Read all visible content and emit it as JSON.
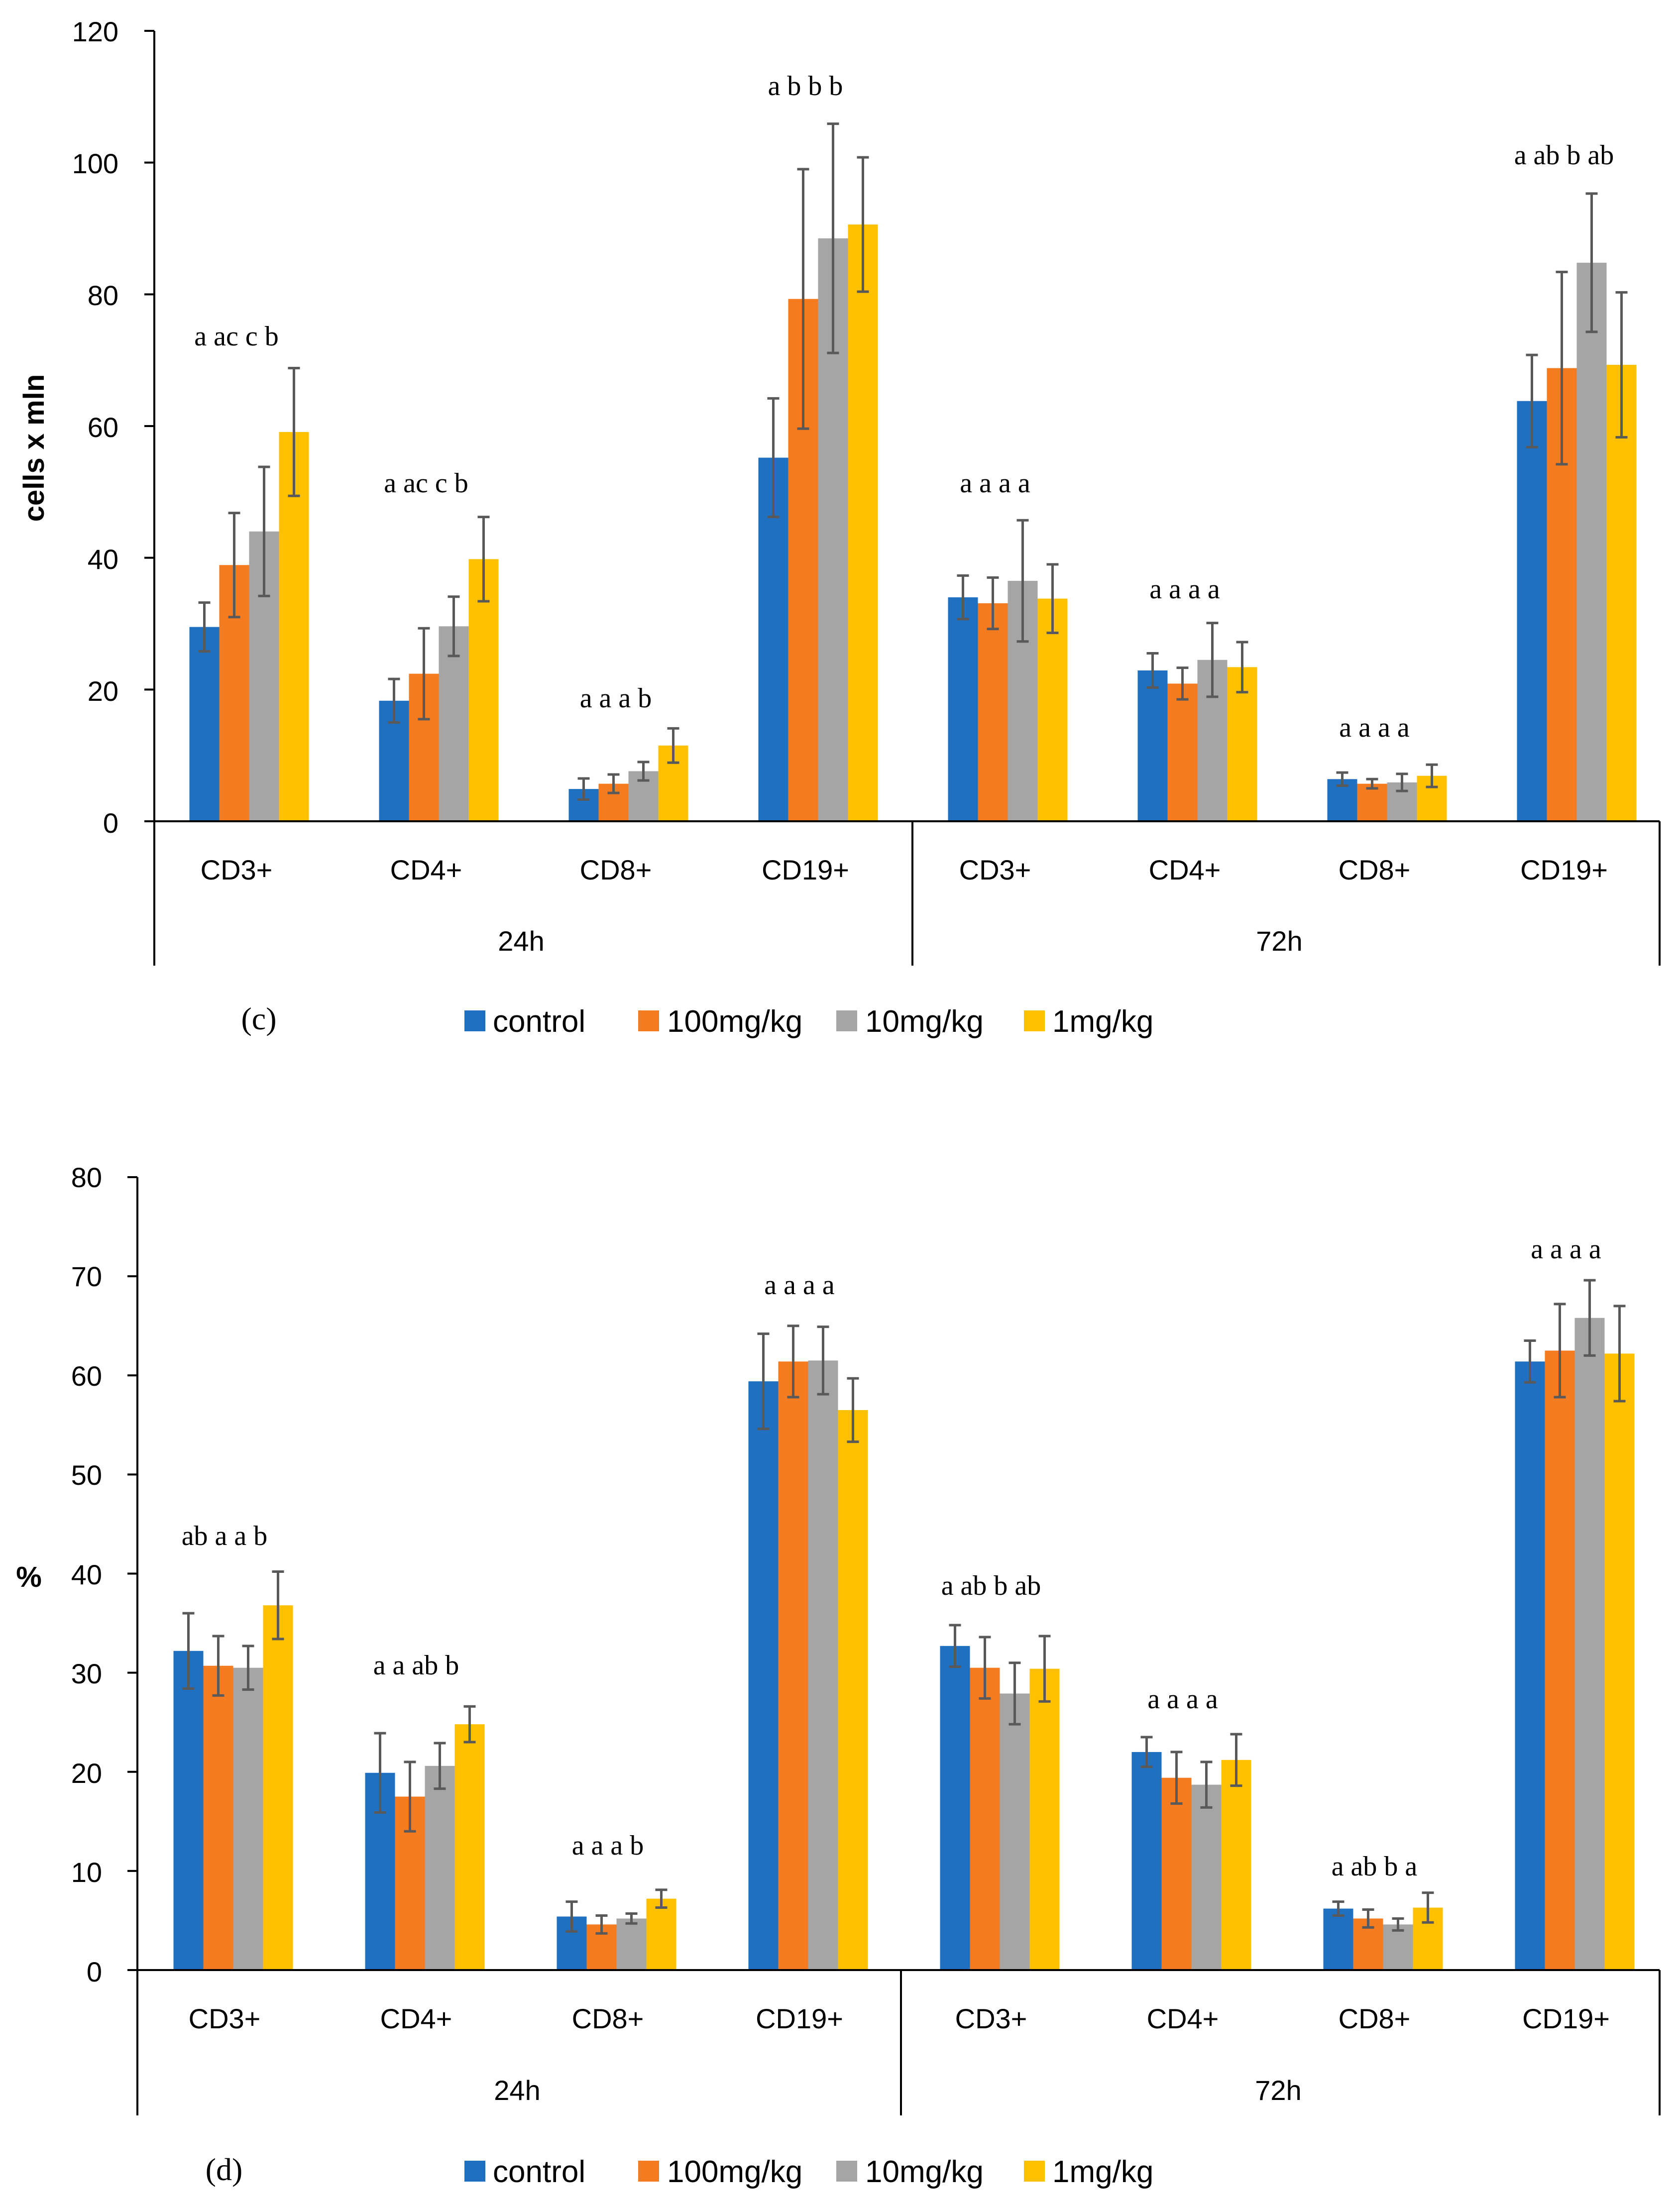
{
  "colors": {
    "control": "#1f70c1",
    "100mg/kg": "#f47b20",
    "10mg/kg": "#a5a5a5",
    "1mg/kg": "#ffc000",
    "error": "#595959",
    "axis": "#000000"
  },
  "legend": [
    "control",
    "100mg/kg",
    "10mg/kg",
    "1mg/kg"
  ],
  "chart_data": [
    {
      "type": "bar",
      "panel_label": "(c)",
      "ylabel": "cells x mln",
      "ylim": [
        0,
        120
      ],
      "yticks": [
        "0",
        "20",
        "40",
        "60",
        "80",
        "100",
        "120"
      ],
      "categories": [
        "CD3+",
        "CD4+",
        "CD8+",
        "CD19+",
        "CD3+",
        "CD4+",
        "CD8+",
        "CD19+"
      ],
      "groups": [
        "24h",
        "72h"
      ],
      "series": [
        {
          "name": "control",
          "values": [
            29.5,
            18.3,
            4.9,
            55.2,
            34.0,
            22.9,
            6.4,
            63.8
          ],
          "errors": [
            3.7,
            3.3,
            1.6,
            9.0,
            3.3,
            2.6,
            1.0,
            7.0
          ]
        },
        {
          "name": "100mg/kg",
          "values": [
            38.9,
            22.4,
            5.7,
            79.3,
            33.1,
            20.9,
            5.7,
            68.8
          ],
          "errors": [
            7.9,
            6.9,
            1.4,
            19.7,
            3.9,
            2.4,
            0.7,
            14.6
          ]
        },
        {
          "name": "10mg/kg",
          "values": [
            44.0,
            29.6,
            7.6,
            88.5,
            36.5,
            24.5,
            5.9,
            84.8
          ],
          "errors": [
            9.8,
            4.5,
            1.4,
            17.4,
            9.2,
            5.6,
            1.3,
            10.5
          ]
        },
        {
          "name": "1mg/kg",
          "values": [
            59.1,
            39.8,
            11.5,
            90.6,
            33.8,
            23.4,
            6.9,
            69.3
          ],
          "errors": [
            9.7,
            6.4,
            2.6,
            10.2,
            5.2,
            3.8,
            1.7,
            11.0
          ]
        }
      ],
      "annotations": [
        "a ac  c  b",
        "a ac c  b",
        "a  a  a  b",
        "a  b  b  b",
        "a  a  a  a",
        "a  a  a  a",
        "a  a  a  a",
        "a ab b ab"
      ]
    },
    {
      "type": "bar",
      "panel_label": "(d)",
      "ylabel": "%",
      "ylim": [
        0,
        80
      ],
      "yticks": [
        "0",
        "10",
        "20",
        "30",
        "40",
        "50",
        "60",
        "70",
        "80"
      ],
      "categories": [
        "CD3+",
        "CD4+",
        "CD8+",
        "CD19+",
        "CD3+",
        "CD4+",
        "CD8+",
        "CD19+"
      ],
      "groups": [
        "24h",
        "72h"
      ],
      "series": [
        {
          "name": "control",
          "values": [
            32.2,
            19.9,
            5.4,
            59.4,
            32.7,
            22.0,
            6.2,
            61.4
          ],
          "errors": [
            3.8,
            4.0,
            1.5,
            4.8,
            2.1,
            1.5,
            0.7,
            2.1
          ]
        },
        {
          "name": "100mg/kg",
          "values": [
            30.7,
            17.5,
            4.6,
            61.4,
            30.5,
            19.4,
            5.2,
            62.5
          ],
          "errors": [
            3.0,
            3.5,
            0.9,
            3.6,
            3.1,
            2.6,
            0.9,
            4.7
          ]
        },
        {
          "name": "10mg/kg",
          "values": [
            30.5,
            20.6,
            5.2,
            61.5,
            27.9,
            18.7,
            4.6,
            65.8
          ],
          "errors": [
            2.2,
            2.3,
            0.5,
            3.4,
            3.1,
            2.3,
            0.6,
            3.8
          ]
        },
        {
          "name": "1mg/kg",
          "values": [
            36.8,
            24.8,
            7.2,
            56.5,
            30.4,
            21.2,
            6.3,
            62.2
          ],
          "errors": [
            3.4,
            1.8,
            0.9,
            3.2,
            3.3,
            2.6,
            1.5,
            4.8
          ]
        }
      ],
      "annotations": [
        "ab a  a  b",
        "a  a ab b",
        "a  a  a b",
        "a  a  a  a",
        "a ab b ab",
        "a  a  a  a",
        "a ab b a",
        "a  a  a  a"
      ]
    }
  ]
}
